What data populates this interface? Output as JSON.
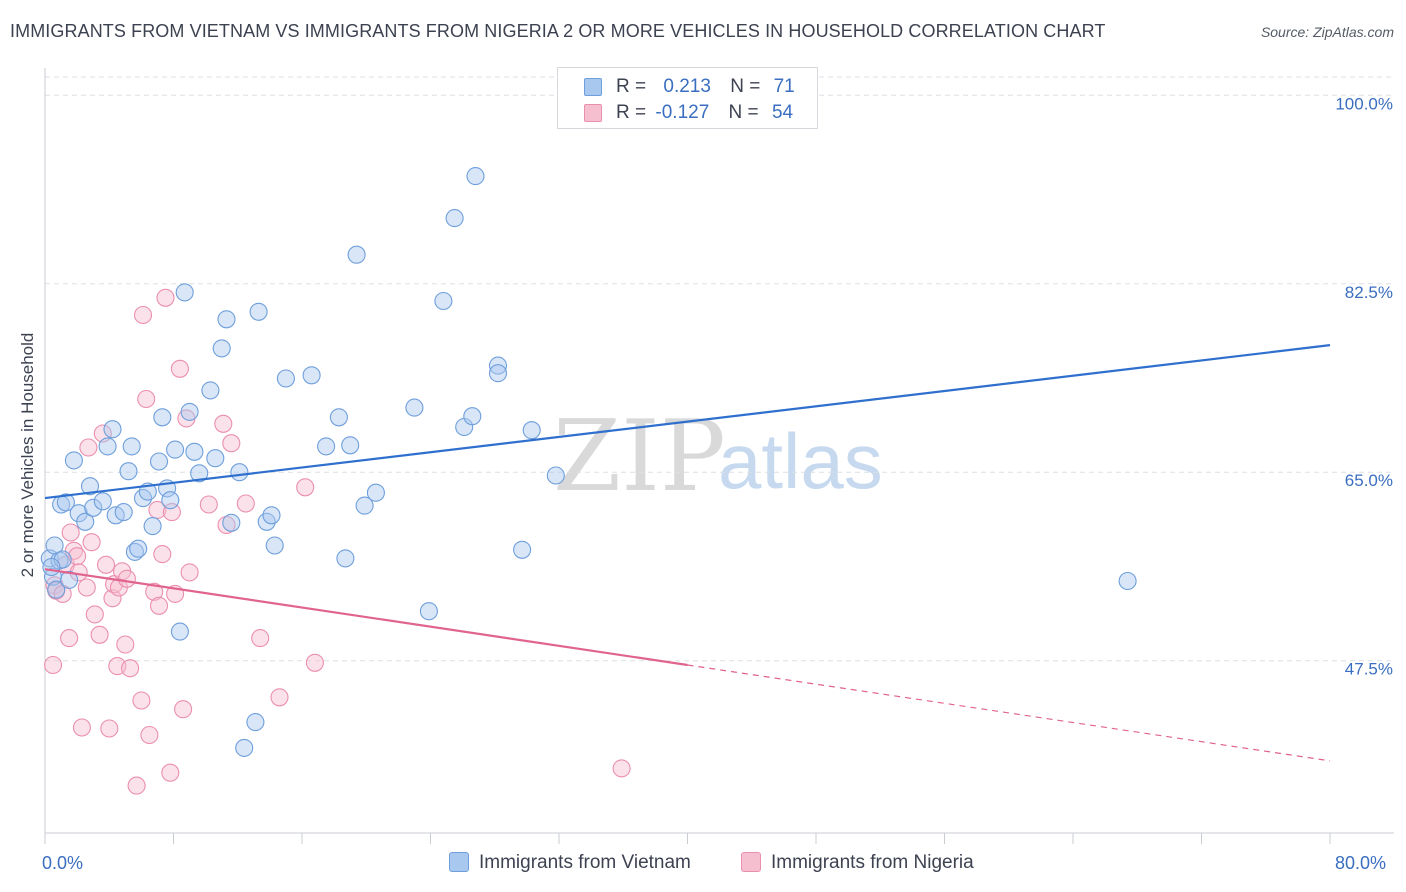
{
  "title": "IMMIGRANTS FROM VIETNAM VS IMMIGRANTS FROM NIGERIA 2 OR MORE VEHICLES IN HOUSEHOLD CORRELATION CHART",
  "source": "Source: ZipAtlas.com",
  "watermark": {
    "zip": "ZIP",
    "atlas": "atlas"
  },
  "colors": {
    "vietnam_fill": "#a9c8ef",
    "vietnam_stroke": "#6f9fdb",
    "vietnam_line": "#2f6fce",
    "nigeria_fill": "#f6bfd0",
    "nigeria_stroke": "#eb8fae",
    "nigeria_line": "#e0648e",
    "accent_text": "#3a6ec0",
    "grid": "#dcdfe5"
  },
  "legend": {
    "vietnam": {
      "r_label": "R =",
      "r_value": "0.213",
      "n_label": "N =",
      "n_value": "71"
    },
    "nigeria": {
      "r_label": "R =",
      "r_value": "-0.127",
      "n_label": "N =",
      "n_value": "54"
    }
  },
  "chart_data": {
    "type": "scatter",
    "title": "IMMIGRANTS FROM VIETNAM VS IMMIGRANTS FROM NIGERIA 2 OR MORE VEHICLES IN HOUSEHOLD CORRELATION CHART",
    "xlabel": "",
    "ylabel": "2 or more Vehicles in Household",
    "x_tick_labels": [
      "0.0%",
      "80.0%"
    ],
    "y_tick_labels": [
      "100.0%",
      "82.5%",
      "65.0%",
      "47.5%"
    ],
    "xlim": [
      0,
      80
    ],
    "ylim": [
      31.5,
      101.7
    ],
    "y_ticks": [
      100.0,
      82.5,
      65.0,
      47.5
    ],
    "grid": true,
    "legend_position": "bottom",
    "series": [
      {
        "name": "Immigrants from Vietnam",
        "R": 0.213,
        "N": 71,
        "trend": {
          "x": [
            0,
            80
          ],
          "y": [
            62.6,
            76.8
          ],
          "dashed_from_x": null
        },
        "points": [
          [
            0.3,
            57.0
          ],
          [
            0.5,
            55.3
          ],
          [
            0.7,
            54.1
          ],
          [
            0.9,
            56.8
          ],
          [
            0.6,
            58.2
          ],
          [
            1.1,
            56.9
          ],
          [
            1.0,
            62.0
          ],
          [
            1.3,
            62.2
          ],
          [
            1.8,
            66.1
          ],
          [
            2.1,
            61.2
          ],
          [
            2.5,
            60.4
          ],
          [
            2.8,
            63.7
          ],
          [
            3.0,
            61.7
          ],
          [
            3.6,
            62.3
          ],
          [
            3.9,
            67.4
          ],
          [
            4.2,
            69.0
          ],
          [
            4.4,
            61.0
          ],
          [
            4.9,
            61.3
          ],
          [
            5.2,
            65.1
          ],
          [
            5.4,
            67.4
          ],
          [
            5.6,
            57.6
          ],
          [
            5.8,
            57.9
          ],
          [
            6.1,
            62.6
          ],
          [
            6.4,
            63.2
          ],
          [
            6.7,
            60.0
          ],
          [
            7.1,
            66.0
          ],
          [
            7.3,
            70.1
          ],
          [
            7.6,
            63.5
          ],
          [
            7.8,
            62.4
          ],
          [
            8.1,
            67.1
          ],
          [
            8.4,
            50.2
          ],
          [
            8.7,
            81.7
          ],
          [
            9.0,
            70.6
          ],
          [
            9.3,
            66.9
          ],
          [
            9.6,
            64.9
          ],
          [
            10.3,
            72.6
          ],
          [
            10.6,
            66.3
          ],
          [
            11.0,
            76.5
          ],
          [
            11.3,
            79.2
          ],
          [
            11.6,
            60.3
          ],
          [
            12.1,
            65.0
          ],
          [
            12.4,
            39.4
          ],
          [
            13.1,
            41.8
          ],
          [
            13.3,
            79.9
          ],
          [
            13.8,
            60.4
          ],
          [
            14.1,
            61.0
          ],
          [
            14.3,
            58.2
          ],
          [
            15.0,
            73.7
          ],
          [
            16.6,
            74.0
          ],
          [
            17.5,
            67.4
          ],
          [
            18.3,
            70.1
          ],
          [
            18.7,
            57.0
          ],
          [
            19.0,
            67.5
          ],
          [
            19.4,
            85.2
          ],
          [
            19.9,
            61.9
          ],
          [
            20.6,
            63.1
          ],
          [
            23.0,
            71.0
          ],
          [
            23.9,
            52.1
          ],
          [
            24.8,
            80.9
          ],
          [
            25.5,
            88.6
          ],
          [
            26.1,
            69.2
          ],
          [
            26.6,
            70.2
          ],
          [
            26.8,
            92.5
          ],
          [
            28.2,
            74.9
          ],
          [
            28.2,
            74.2
          ],
          [
            29.7,
            57.8
          ],
          [
            30.3,
            68.9
          ],
          [
            31.8,
            64.7
          ],
          [
            67.4,
            54.9
          ],
          [
            1.5,
            55.0
          ],
          [
            0.4,
            56.2
          ]
        ]
      },
      {
        "name": "Immigrants from Nigeria",
        "R": -0.127,
        "N": 54,
        "trend": {
          "x": [
            0,
            80
          ],
          "y": [
            56.0,
            38.2
          ],
          "dashed_from_x": 40.0
        },
        "points": [
          [
            0.5,
            47.1
          ],
          [
            0.6,
            54.5
          ],
          [
            0.7,
            54.0
          ],
          [
            1.1,
            53.7
          ],
          [
            1.3,
            56.4
          ],
          [
            1.5,
            49.6
          ],
          [
            1.6,
            59.4
          ],
          [
            1.8,
            57.7
          ],
          [
            2.0,
            57.2
          ],
          [
            2.1,
            55.7
          ],
          [
            2.3,
            41.3
          ],
          [
            2.6,
            54.3
          ],
          [
            2.7,
            67.3
          ],
          [
            2.9,
            58.5
          ],
          [
            3.1,
            51.8
          ],
          [
            3.4,
            49.9
          ],
          [
            3.6,
            68.6
          ],
          [
            3.8,
            56.4
          ],
          [
            4.0,
            41.2
          ],
          [
            4.2,
            53.3
          ],
          [
            4.3,
            54.6
          ],
          [
            4.5,
            47.0
          ],
          [
            4.6,
            54.3
          ],
          [
            4.8,
            55.8
          ],
          [
            5.0,
            49.0
          ],
          [
            5.1,
            55.1
          ],
          [
            5.3,
            46.8
          ],
          [
            5.7,
            35.9
          ],
          [
            6.0,
            43.8
          ],
          [
            6.1,
            79.6
          ],
          [
            6.3,
            71.8
          ],
          [
            6.5,
            40.6
          ],
          [
            6.8,
            53.9
          ],
          [
            7.0,
            61.5
          ],
          [
            7.1,
            52.6
          ],
          [
            7.3,
            57.4
          ],
          [
            7.5,
            81.2
          ],
          [
            7.8,
            37.1
          ],
          [
            7.9,
            61.3
          ],
          [
            8.1,
            53.7
          ],
          [
            8.4,
            74.6
          ],
          [
            8.6,
            43.0
          ],
          [
            8.8,
            70.0
          ],
          [
            9.0,
            55.7
          ],
          [
            10.2,
            62.0
          ],
          [
            11.1,
            69.5
          ],
          [
            11.3,
            60.1
          ],
          [
            11.6,
            67.7
          ],
          [
            12.5,
            62.1
          ],
          [
            13.4,
            49.6
          ],
          [
            14.6,
            44.1
          ],
          [
            16.2,
            63.6
          ],
          [
            16.8,
            47.3
          ],
          [
            35.9,
            37.5
          ]
        ]
      }
    ]
  },
  "bottom_legend": [
    "Immigrants from Vietnam",
    "Immigrants from Nigeria"
  ]
}
